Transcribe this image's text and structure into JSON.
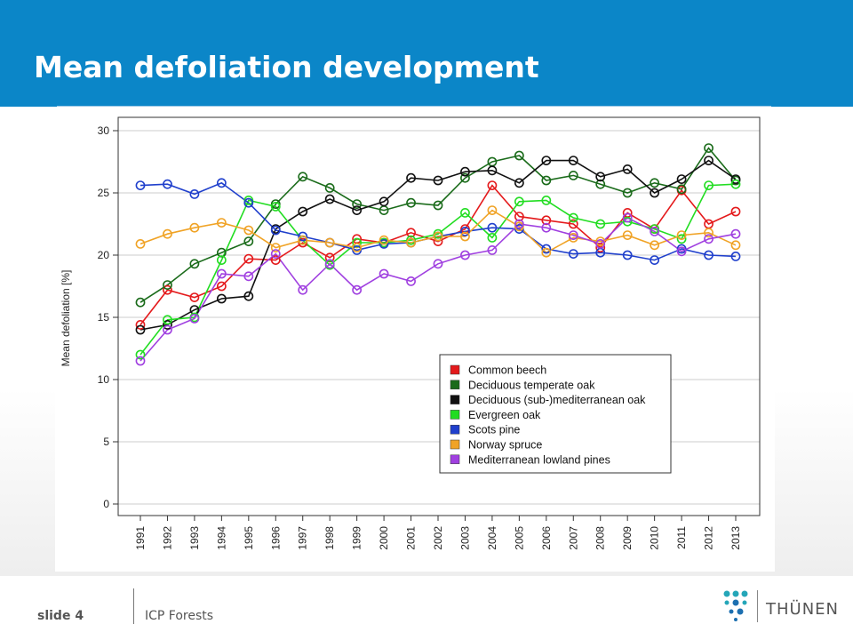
{
  "header": {
    "title": "Mean defoliation development"
  },
  "footer": {
    "slide": "slide 4",
    "org": "ICP Forests",
    "logo_text": "THÜNEN"
  },
  "colors": {
    "header_bg": "#0b86c8",
    "logo_teal": "#24a6b8",
    "logo_blue": "#1c6fb0"
  },
  "chart_data": {
    "type": "line",
    "title": "",
    "xlabel": "",
    "ylabel": "Mean defoliation [%]",
    "ylim": [
      0,
      30
    ],
    "yticks": [
      "0",
      "5",
      "10",
      "15",
      "20",
      "25",
      "30"
    ],
    "grid": true,
    "legend_position": "bottom-right",
    "categories": [
      "1991",
      "1992",
      "1993",
      "1994",
      "1995",
      "1996",
      "1997",
      "1998",
      "1999",
      "2000",
      "2001",
      "2002",
      "2003",
      "2004",
      "2005",
      "2006",
      "2007",
      "2008",
      "2009",
      "2010",
      "2011",
      "2012",
      "2013"
    ],
    "series": [
      {
        "name": "Common beech",
        "color": "#e41a1c",
        "values": [
          14.4,
          17.2,
          16.6,
          17.5,
          19.7,
          19.6,
          21.0,
          19.8,
          21.3,
          21.0,
          21.8,
          21.1,
          22.1,
          25.6,
          23.1,
          22.8,
          22.5,
          20.6,
          23.4,
          22.1,
          25.2,
          22.5,
          23.5
        ]
      },
      {
        "name": "Deciduous temperate oak",
        "color": "#1a6b1a",
        "values": [
          16.2,
          17.6,
          19.3,
          20.2,
          21.1,
          24.1,
          26.3,
          25.4,
          24.1,
          23.6,
          24.2,
          24.0,
          26.2,
          27.5,
          28.0,
          26.0,
          26.4,
          25.7,
          25.0,
          25.8,
          25.3,
          28.6,
          26.0
        ]
      },
      {
        "name": "Deciduous (sub-)mediterranean oak",
        "color": "#111111",
        "values": [
          14.0,
          14.4,
          15.6,
          16.5,
          16.7,
          22.1,
          23.5,
          24.5,
          23.6,
          24.3,
          26.2,
          26.0,
          26.7,
          26.8,
          25.8,
          27.6,
          27.6,
          26.3,
          26.9,
          25.0,
          26.1,
          27.6,
          26.1
        ]
      },
      {
        "name": "Evergreen oak",
        "color": "#22dd22",
        "values": [
          12.0,
          14.8,
          15.0,
          19.6,
          24.4,
          23.9,
          21.2,
          19.2,
          21.0,
          21.0,
          21.2,
          21.7,
          23.4,
          21.4,
          24.3,
          24.4,
          23.0,
          22.5,
          22.7,
          22.1,
          21.3,
          25.6,
          25.7
        ]
      },
      {
        "name": "Scots pine",
        "color": "#1f3fcc",
        "values": [
          25.6,
          25.7,
          24.9,
          25.8,
          24.2,
          22.0,
          21.5,
          21.0,
          20.4,
          20.9,
          21.0,
          21.5,
          21.9,
          22.2,
          22.1,
          20.5,
          20.1,
          20.2,
          20.0,
          19.6,
          20.5,
          20.0,
          19.9
        ]
      },
      {
        "name": "Norway spruce",
        "color": "#f0a326",
        "values": [
          20.9,
          21.7,
          22.2,
          22.6,
          22.0,
          20.6,
          21.2,
          21.0,
          20.6,
          21.2,
          21.0,
          21.5,
          21.5,
          23.6,
          22.3,
          20.2,
          21.4,
          21.1,
          21.6,
          20.8,
          21.6,
          21.8,
          20.8
        ]
      },
      {
        "name": "Mediterranean lowland pines",
        "color": "#a040e0",
        "values": [
          11.5,
          14.0,
          14.9,
          18.5,
          18.3,
          20.1,
          17.2,
          19.3,
          17.2,
          18.5,
          17.9,
          19.3,
          20.0,
          20.4,
          22.5,
          22.2,
          21.6,
          20.9,
          23.0,
          21.9,
          20.3,
          21.3,
          21.7
        ]
      }
    ]
  }
}
